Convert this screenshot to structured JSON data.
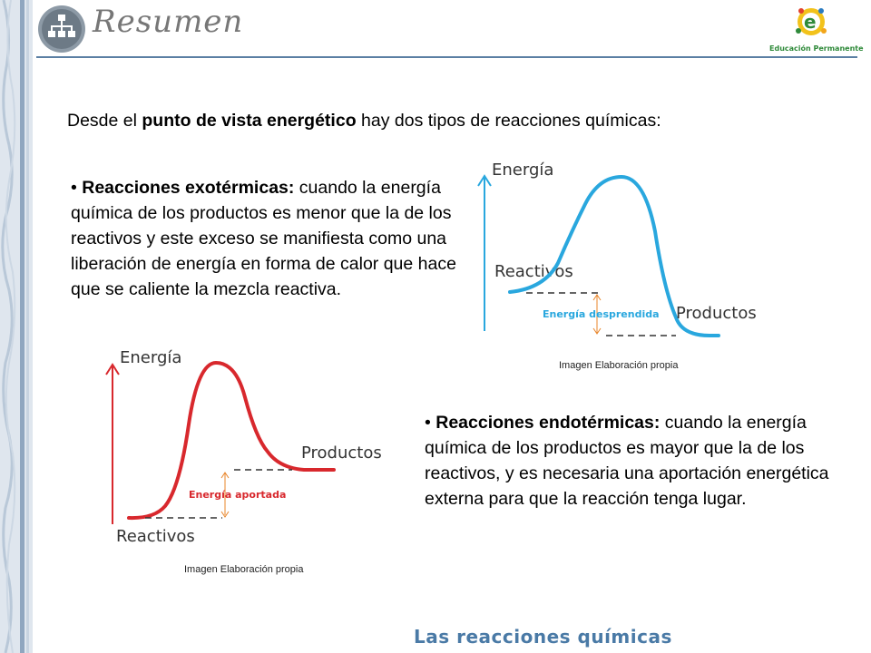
{
  "header": {
    "title": "Resumen",
    "logo_text": "Educación Permanente"
  },
  "intro": {
    "before": "Desde el ",
    "bold": "punto de vista energético",
    "after": " hay dos tipos de reacciones químicas:"
  },
  "exothermic": {
    "bullet": "•",
    "term": "Reacciones exotérmicas:",
    "text": " cuando la energía química de los productos es menor que la de los reactivos y este exceso se manifiesta como una liberación de energía en forma de calor que hace que se caliente la mezcla reactiva."
  },
  "endothermic": {
    "bullet": "•",
    "term": "Reacciones endotérmicas:",
    "text": " cuando la energía química de los productos es mayor que la de los reactivos, y es necesaria una aportación energética externa para que la reacción tenga lugar."
  },
  "diagram_exo": {
    "axis_label": "Energía",
    "reactants_label": "Reactivos",
    "products_label": "Productos",
    "energy_label": "Energía desprendida",
    "curve_color": "#29a7de",
    "caption": "Imagen Elaboración propia"
  },
  "diagram_endo": {
    "axis_label": "Energía",
    "reactants_label": "Reactivos",
    "products_label": "Productos",
    "energy_label": "Energía aportada",
    "curve_color": "#d8282d",
    "caption": "Imagen Elaboración propia"
  },
  "footer": {
    "title": "Las reacciones químicas"
  }
}
